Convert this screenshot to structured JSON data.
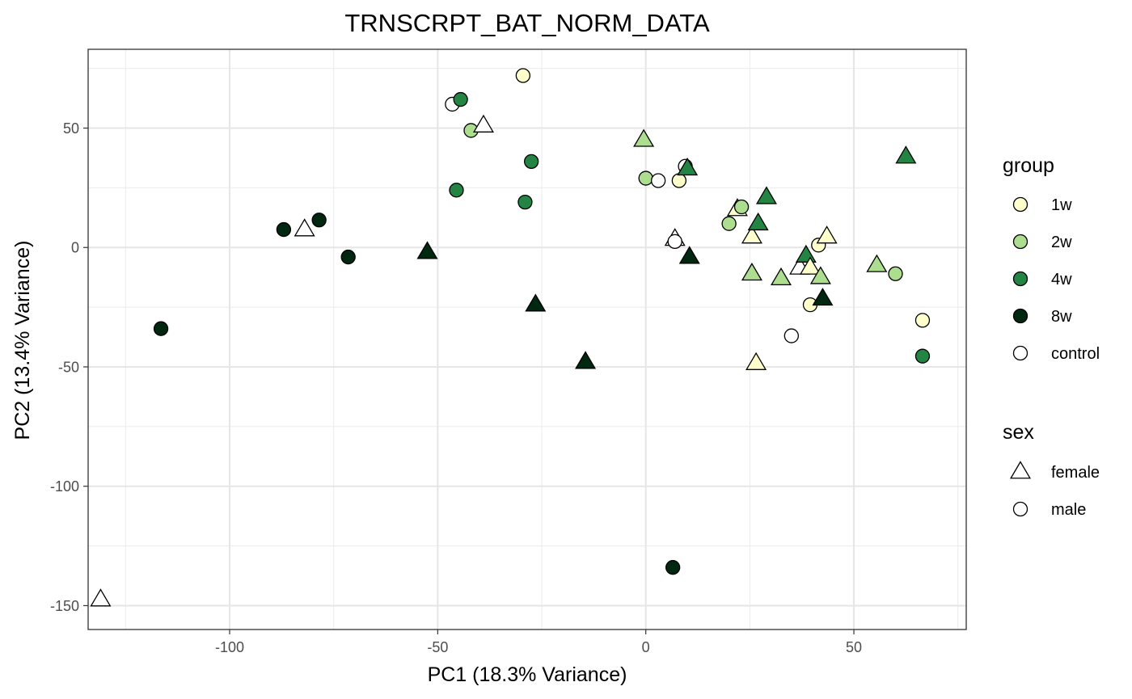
{
  "chart_data": {
    "type": "scatter",
    "title": "TRNSCRPT_BAT_NORM_DATA",
    "xlabel": "PC1 (18.3% Variance)",
    "ylabel": "PC2 (13.4% Variance)",
    "xlim": [
      -134,
      77
    ],
    "ylim": [
      -160,
      83
    ],
    "xticks": [
      -100,
      -50,
      0,
      50
    ],
    "yticks": [
      -150,
      -100,
      -50,
      0,
      50
    ],
    "grid": true,
    "legend_position": "right",
    "group_legend": {
      "title": "group",
      "items": [
        {
          "label": "1w",
          "color": "#ffffcc"
        },
        {
          "label": "2w",
          "color": "#addd8e"
        },
        {
          "label": "4w",
          "color": "#238443"
        },
        {
          "label": "8w",
          "color": "#002810"
        },
        {
          "label": "control",
          "color": "#ffffff"
        }
      ]
    },
    "sex_legend": {
      "title": "sex",
      "items": [
        {
          "label": "female",
          "shape": "triangle"
        },
        {
          "label": "male",
          "shape": "circle"
        }
      ]
    },
    "points": [
      {
        "x": -29.5,
        "y": 72,
        "group": "1w",
        "sex": "male"
      },
      {
        "x": -46.5,
        "y": 60,
        "group": "control",
        "sex": "male"
      },
      {
        "x": -44.5,
        "y": 62,
        "group": "4w",
        "sex": "male"
      },
      {
        "x": -42,
        "y": 49,
        "group": "2w",
        "sex": "male"
      },
      {
        "x": -39,
        "y": 51,
        "group": "control",
        "sex": "female"
      },
      {
        "x": -27.5,
        "y": 36,
        "group": "4w",
        "sex": "male"
      },
      {
        "x": -45.5,
        "y": 24,
        "group": "4w",
        "sex": "male"
      },
      {
        "x": -29,
        "y": 19,
        "group": "4w",
        "sex": "male"
      },
      {
        "x": -0.5,
        "y": 45,
        "group": "2w",
        "sex": "female"
      },
      {
        "x": 0,
        "y": 29,
        "group": "2w",
        "sex": "male"
      },
      {
        "x": 3,
        "y": 28,
        "group": "control",
        "sex": "male"
      },
      {
        "x": 8,
        "y": 28,
        "group": "1w",
        "sex": "male"
      },
      {
        "x": 9.5,
        "y": 34,
        "group": "control",
        "sex": "male"
      },
      {
        "x": 10,
        "y": 33,
        "group": "4w",
        "sex": "female"
      },
      {
        "x": 62.5,
        "y": 38,
        "group": "4w",
        "sex": "female"
      },
      {
        "x": -87,
        "y": 7.5,
        "group": "8w",
        "sex": "male"
      },
      {
        "x": -82,
        "y": 7.5,
        "group": "control",
        "sex": "female"
      },
      {
        "x": -78.5,
        "y": 11.5,
        "group": "8w",
        "sex": "male"
      },
      {
        "x": -71.5,
        "y": -4,
        "group": "8w",
        "sex": "male"
      },
      {
        "x": -52.5,
        "y": -2,
        "group": "8w",
        "sex": "female"
      },
      {
        "x": -116.5,
        "y": -34,
        "group": "8w",
        "sex": "male"
      },
      {
        "x": -26.5,
        "y": -24,
        "group": "8w",
        "sex": "female"
      },
      {
        "x": -14.5,
        "y": -48,
        "group": "8w",
        "sex": "female"
      },
      {
        "x": 7,
        "y": 3.5,
        "group": "control",
        "sex": "female"
      },
      {
        "x": 7,
        "y": 2.5,
        "group": "control",
        "sex": "male"
      },
      {
        "x": 10.5,
        "y": -4,
        "group": "8w",
        "sex": "female"
      },
      {
        "x": 20,
        "y": 10,
        "group": "2w",
        "sex": "male"
      },
      {
        "x": 22,
        "y": 16,
        "group": "1w",
        "sex": "female"
      },
      {
        "x": 23,
        "y": 17,
        "group": "2w",
        "sex": "male"
      },
      {
        "x": 25.5,
        "y": 4.5,
        "group": "1w",
        "sex": "female"
      },
      {
        "x": 27,
        "y": 10,
        "group": "4w",
        "sex": "female"
      },
      {
        "x": 29,
        "y": 21,
        "group": "4w",
        "sex": "female"
      },
      {
        "x": 25.5,
        "y": -11,
        "group": "2w",
        "sex": "female"
      },
      {
        "x": 32.5,
        "y": -13,
        "group": "2w",
        "sex": "female"
      },
      {
        "x": 37,
        "y": -8.5,
        "group": "control",
        "sex": "female"
      },
      {
        "x": 38.5,
        "y": -3.5,
        "group": "4w",
        "sex": "female"
      },
      {
        "x": 39.5,
        "y": -8.5,
        "group": "1w",
        "sex": "female"
      },
      {
        "x": 41.5,
        "y": 1,
        "group": "1w",
        "sex": "male"
      },
      {
        "x": 43.5,
        "y": 4.5,
        "group": "1w",
        "sex": "female"
      },
      {
        "x": 42,
        "y": -12.5,
        "group": "2w",
        "sex": "female"
      },
      {
        "x": 39.5,
        "y": -24,
        "group": "1w",
        "sex": "male"
      },
      {
        "x": 42.5,
        "y": -21.5,
        "group": "8w",
        "sex": "female"
      },
      {
        "x": 35,
        "y": -37,
        "group": "control",
        "sex": "male"
      },
      {
        "x": 26.5,
        "y": -48.5,
        "group": "1w",
        "sex": "female"
      },
      {
        "x": 55.5,
        "y": -7.5,
        "group": "2w",
        "sex": "female"
      },
      {
        "x": 60,
        "y": -11,
        "group": "2w",
        "sex": "male"
      },
      {
        "x": 66.5,
        "y": -30.5,
        "group": "1w",
        "sex": "male"
      },
      {
        "x": 66.5,
        "y": -45.5,
        "group": "4w",
        "sex": "male"
      },
      {
        "x": 6.5,
        "y": -134,
        "group": "8w",
        "sex": "male"
      },
      {
        "x": -131,
        "y": -147.5,
        "group": "control",
        "sex": "female"
      }
    ]
  }
}
